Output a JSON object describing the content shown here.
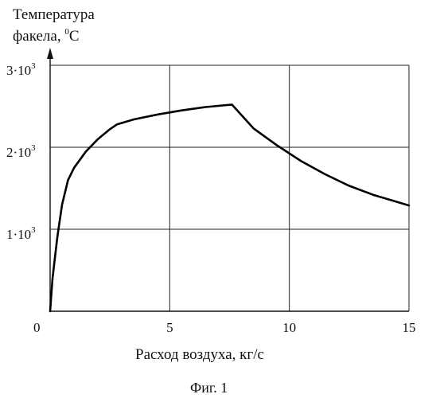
{
  "figure": {
    "caption": "Фиг. 1"
  },
  "chart_data": {
    "type": "line",
    "ylabel_line1": "Температура",
    "ylabel_line2_text": "факела, ",
    "ylabel_line2_sup": "0",
    "ylabel_line2_unit": "C",
    "xlabel": "Расход воздуха, кг/с",
    "xlim": [
      0,
      15
    ],
    "ylim": [
      0,
      3000
    ],
    "grid": true,
    "x_ticks": [
      {
        "value": 0,
        "label": "0"
      },
      {
        "value": 5,
        "label": "5"
      },
      {
        "value": 10,
        "label": "10"
      },
      {
        "value": 15,
        "label": "15"
      }
    ],
    "y_ticks": [
      {
        "value": 1000,
        "base": "1·10",
        "exp": "3"
      },
      {
        "value": 2000,
        "base": "2·10",
        "exp": "3"
      },
      {
        "value": 3000,
        "base": "3·10",
        "exp": "3"
      }
    ],
    "series": [
      {
        "x": [
          0,
          0.1,
          0.3,
          0.5,
          0.75,
          1.0,
          1.5,
          2.0,
          2.5,
          2.8,
          3.5,
          4.5,
          5.5,
          6.5,
          7.2,
          7.6,
          8.5,
          9.5,
          10.5,
          11.5,
          12.5,
          13.5,
          15.0
        ],
        "y": [
          0,
          400,
          900,
          1300,
          1600,
          1750,
          1950,
          2100,
          2220,
          2280,
          2340,
          2400,
          2450,
          2490,
          2510,
          2520,
          2230,
          2020,
          1830,
          1670,
          1530,
          1420,
          1290
        ]
      }
    ]
  }
}
